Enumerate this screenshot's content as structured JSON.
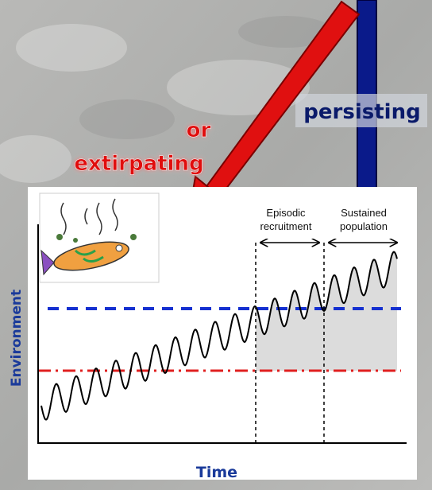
{
  "labels": {
    "or": "or",
    "extirpating": "extirpating",
    "persisting": "persisting"
  },
  "chart": {
    "annotations": [
      {
        "line1": "Episodic",
        "line2": "recruitment"
      },
      {
        "line1": "Sustained",
        "line2": "population"
      }
    ],
    "y_axis_label": "Environment",
    "x_axis_label": "Time"
  }
}
